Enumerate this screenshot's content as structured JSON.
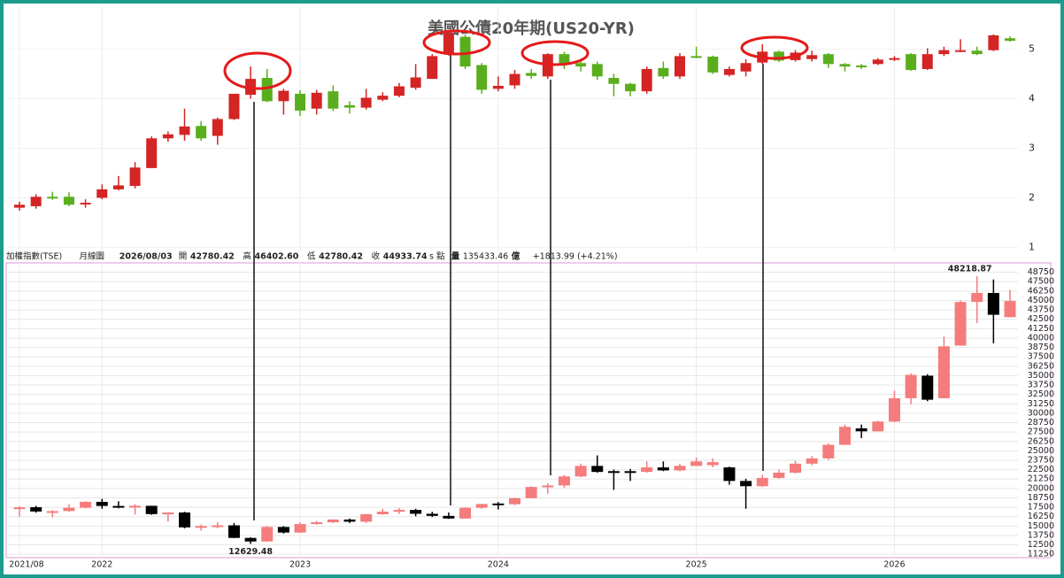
{
  "header": {
    "items": [
      "加權指數(TSE)",
      "月線圖",
      "2026/08/03",
      "開",
      "42780.42",
      "高",
      "46402.60",
      "低",
      "42780.42",
      "收",
      "44933.74",
      "s 點",
      "量",
      "135433.46",
      "億",
      "+1813.99 (+4.21%)"
    ]
  },
  "chart_data": [
    {
      "type": "candlestick",
      "title": "美國公債20年期(US20-YR)",
      "up_color": "#d42424",
      "down_color": "#5aae1e",
      "ylim": [
        0.9,
        5.85
      ],
      "yticks": [
        1,
        2,
        3,
        4,
        5
      ],
      "grid": true,
      "series": [
        {
          "open": [
            1.8,
            1.83,
            2.02,
            2.02,
            1.87,
            2.0,
            2.17,
            2.24,
            2.6,
            3.2,
            3.27,
            3.45,
            3.25,
            3.59,
            4.08,
            4.42,
            3.95,
            4.1,
            3.8,
            4.15,
            3.87,
            3.82,
            3.98,
            4.06,
            4.22,
            4.4,
            4.9,
            5.25,
            4.68,
            4.2,
            4.27,
            4.52,
            4.45,
            4.9,
            4.72,
            4.7,
            4.42,
            4.3,
            4.15,
            4.62,
            4.45,
            4.86,
            4.85,
            4.48,
            4.55,
            4.73,
            4.95,
            4.78,
            4.8,
            4.9,
            4.7,
            4.67,
            4.7,
            4.8,
            4.9,
            4.6,
            4.9,
            4.95,
            4.97,
            4.98,
            5.22
          ],
          "high": [
            1.92,
            2.07,
            2.12,
            2.11,
            1.97,
            2.27,
            2.44,
            2.72,
            3.24,
            3.34,
            3.8,
            3.55,
            3.62,
            4.1,
            4.65,
            4.6,
            4.2,
            4.17,
            4.18,
            4.27,
            3.95,
            4.2,
            4.13,
            4.32,
            4.7,
            4.9,
            5.35,
            5.3,
            4.72,
            4.45,
            4.58,
            4.6,
            4.92,
            4.95,
            4.8,
            4.75,
            4.5,
            4.32,
            4.65,
            4.75,
            4.92,
            5.05,
            4.87,
            4.65,
            4.8,
            5.1,
            4.97,
            4.98,
            4.97,
            4.92,
            4.72,
            4.7,
            4.82,
            4.86,
            4.92,
            5.02,
            5.05,
            5.2,
            5.05,
            5.3,
            5.26
          ],
          "low": [
            1.74,
            1.78,
            1.96,
            1.83,
            1.8,
            1.97,
            2.15,
            2.19,
            2.6,
            3.13,
            3.15,
            3.15,
            3.07,
            3.57,
            4.0,
            3.93,
            3.68,
            3.65,
            3.68,
            3.75,
            3.7,
            3.78,
            3.95,
            4.03,
            4.18,
            4.4,
            4.87,
            4.6,
            4.1,
            4.15,
            4.2,
            4.4,
            4.4,
            4.6,
            4.55,
            4.38,
            4.05,
            4.05,
            4.1,
            4.4,
            4.4,
            4.82,
            4.5,
            4.45,
            4.45,
            4.7,
            4.74,
            4.75,
            4.75,
            4.62,
            4.55,
            4.6,
            4.68,
            4.76,
            4.56,
            4.58,
            4.86,
            4.94,
            4.88,
            4.96,
            5.15
          ],
          "close": [
            1.86,
            2.02,
            1.99,
            1.86,
            1.9,
            2.17,
            2.25,
            2.61,
            3.2,
            3.28,
            3.44,
            3.2,
            3.59,
            4.1,
            4.4,
            3.95,
            4.16,
            3.76,
            4.12,
            3.8,
            3.82,
            4.02,
            4.06,
            4.25,
            4.43,
            4.86,
            5.32,
            4.65,
            4.18,
            4.26,
            4.5,
            4.46,
            4.9,
            4.7,
            4.65,
            4.45,
            4.3,
            4.15,
            4.6,
            4.45,
            4.86,
            4.84,
            4.53,
            4.6,
            4.72,
            4.95,
            4.77,
            4.93,
            4.88,
            4.7,
            4.65,
            4.64,
            4.79,
            4.82,
            4.58,
            4.9,
            4.98,
            4.98,
            4.9,
            5.28,
            5.17
          ]
        }
      ]
    },
    {
      "type": "candlestick",
      "up_color": "#f47c7c",
      "down_color": "#000000",
      "categories": [
        "2021/08",
        null,
        null,
        null,
        null,
        "2022",
        null,
        null,
        null,
        null,
        null,
        null,
        null,
        null,
        null,
        null,
        null,
        "2023",
        null,
        null,
        null,
        null,
        null,
        null,
        null,
        null,
        null,
        null,
        null,
        "2024",
        null,
        null,
        null,
        null,
        null,
        null,
        null,
        null,
        null,
        null,
        null,
        "2025",
        null,
        null,
        null,
        null,
        null,
        null,
        null,
        null,
        null,
        null,
        null,
        "2026",
        null,
        null,
        null,
        null,
        null,
        null,
        null
      ],
      "ylim": [
        10800,
        50000
      ],
      "yticks": [
        11250,
        12500,
        13750,
        15000,
        16250,
        17500,
        18750,
        20000,
        21250,
        22500,
        23750,
        25000,
        26250,
        27500,
        28750,
        30000,
        31250,
        32500,
        33750,
        35000,
        36250,
        37500,
        38750,
        40000,
        41250,
        42500,
        43750,
        45000,
        46250,
        47500,
        48750
      ],
      "grid": true,
      "series": [
        {
          "open": [
            17319,
            17510,
            16935,
            17000,
            17428,
            18219,
            17674,
            17652,
            17693,
            16593,
            16807,
            14826,
            15000,
            15095,
            13425,
            12949,
            14880,
            14138,
            15265,
            15504,
            15868,
            15579,
            16579,
            16915,
            17145,
            16635,
            16353,
            16001,
            17433,
            18000,
            17900,
            18700,
            20200,
            20400,
            21600,
            23000,
            22300,
            22300,
            22200,
            22800,
            22400,
            23000,
            23100,
            22800,
            21000,
            20300,
            21400,
            22100,
            23300,
            24000,
            25800,
            28000,
            27600,
            28900,
            32000,
            35000,
            32000,
            39000,
            44800,
            46000,
            42780.42
          ],
          "high": [
            17640,
            17700,
            17110,
            17900,
            18291,
            18619,
            18300,
            17900,
            17700,
            16800,
            16900,
            15200,
            15500,
            15400,
            13500,
            15000,
            15000,
            15500,
            15700,
            15900,
            16000,
            16600,
            17300,
            17400,
            17300,
            16900,
            16800,
            17500,
            17950,
            18200,
            18800,
            20300,
            20700,
            21800,
            23300,
            24400,
            22500,
            22600,
            23600,
            23600,
            23300,
            24100,
            24000,
            22900,
            21300,
            21800,
            22500,
            23700,
            24300,
            26000,
            28500,
            28500,
            29000,
            33000,
            35300,
            35200,
            40200,
            45000,
            48218.87,
            47800,
            46402.6
          ],
          "low": [
            16248,
            16778,
            16162,
            16900,
            17347,
            17300,
            17361,
            16526,
            16500,
            15616,
            14688,
            14396,
            14720,
            13379,
            12629.48,
            12900,
            14000,
            14100,
            15200,
            15400,
            15400,
            15400,
            16500,
            16600,
            16300,
            16200,
            15950,
            16000,
            17300,
            17200,
            17800,
            18700,
            19300,
            20100,
            21500,
            22100,
            19800,
            21000,
            22100,
            22300,
            22300,
            23000,
            22800,
            20500,
            17300,
            20200,
            21300,
            22000,
            23100,
            23800,
            25800,
            26700,
            27600,
            28800,
            31200,
            31600,
            32000,
            39000,
            42000,
            39300,
            42780.42
          ],
          "close": [
            17490,
            16935,
            16987,
            17428,
            18219,
            17674,
            17652,
            17693,
            16593,
            16807,
            14826,
            15000,
            15095,
            13425,
            12949,
            14880,
            14138,
            15265,
            15504,
            15868,
            15579,
            16579,
            16915,
            17145,
            16635,
            16353,
            16001,
            17433,
            17931,
            17900,
            18700,
            20200,
            20400,
            21600,
            23000,
            22200,
            22200,
            22200,
            22800,
            22400,
            23000,
            23600,
            23500,
            21000,
            20300,
            21400,
            22100,
            23300,
            24000,
            25800,
            28200,
            27600,
            28900,
            32000,
            35100,
            31800,
            38900,
            44800,
            46000,
            43100,
            44933.74
          ]
        }
      ]
    }
  ]
}
